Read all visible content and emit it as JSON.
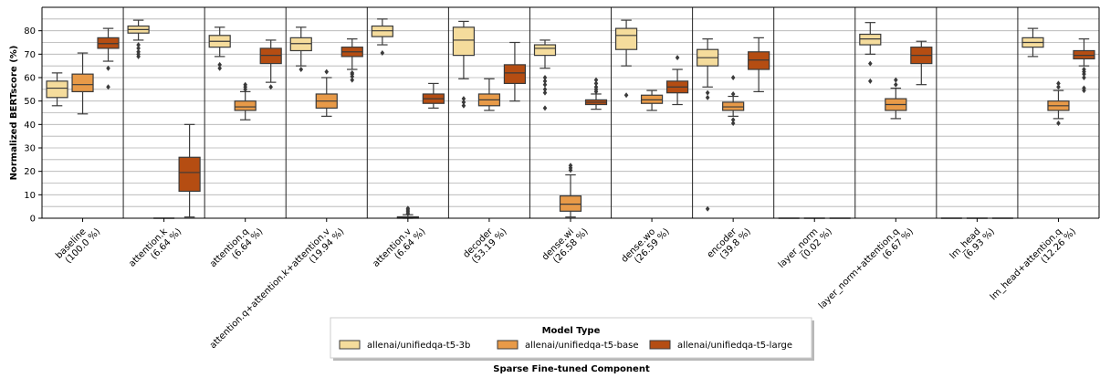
{
  "chart_data": {
    "type": "box",
    "xlabel": "Sparse Fine-tuned Component",
    "ylabel": "Normalized BERTscore (%)",
    "ylim": [
      0,
      90
    ],
    "yticks": [
      0,
      10,
      20,
      30,
      40,
      50,
      60,
      70,
      80
    ],
    "grid": "horizontal",
    "legend_title": "Model Type",
    "legend_position": "bottom-center",
    "categories": [
      {
        "label": "baseline",
        "pct": "(100.0 %)"
      },
      {
        "label": "attention.k",
        "pct": "(6.64 %)"
      },
      {
        "label": "attention.q",
        "pct": "(6.64 %)"
      },
      {
        "label": "attention.q+attention.k+attention.v",
        "pct": "(19.94 %)"
      },
      {
        "label": "attention.v",
        "pct": "(6.64 %)"
      },
      {
        "label": "decoder",
        "pct": "(53.19 %)"
      },
      {
        "label": "dense.wi",
        "pct": "(26.58 %)"
      },
      {
        "label": "dense.wo",
        "pct": "(26.59 %)"
      },
      {
        "label": "encoder",
        "pct": "(39.8 %)"
      },
      {
        "label": "layer_norm",
        "pct": "(0.02 %)"
      },
      {
        "label": "layer_norm+attention.q",
        "pct": "(6.67 %)"
      },
      {
        "label": "lm_head",
        "pct": "(6.93 %)"
      },
      {
        "label": "lm_head+attention.q",
        "pct": "(12.26 %)"
      }
    ],
    "series": [
      {
        "name": "allenai/unifiedqa-t5-3b",
        "color": "#f5dc9c",
        "boxes": [
          {
            "min": 48,
            "q1": 51.5,
            "median": 55.5,
            "q3": 58.5,
            "max": 62,
            "outliers": []
          },
          {
            "min": 76,
            "q1": 79,
            "median": 80.5,
            "q3": 82,
            "max": 84.5,
            "outliers": [
              69,
              70,
              71,
              72.5,
              74
            ]
          },
          {
            "min": 69,
            "q1": 73,
            "median": 75.5,
            "q3": 78,
            "max": 81.5,
            "outliers": [
              64,
              65.5
            ]
          },
          {
            "min": 65,
            "q1": 71.5,
            "median": 74.5,
            "q3": 77,
            "max": 81.5,
            "outliers": [
              63.5
            ]
          },
          {
            "min": 74,
            "q1": 77.5,
            "median": 80,
            "q3": 82,
            "max": 85,
            "outliers": [
              70.5
            ]
          },
          {
            "min": 59.5,
            "q1": 69.5,
            "median": 76,
            "q3": 81.5,
            "max": 84,
            "outliers": [
              48,
              49.5,
              51
            ]
          },
          {
            "min": 64,
            "q1": 69.5,
            "median": 72.5,
            "q3": 74,
            "max": 76,
            "outliers": [
              47,
              53.5,
              55,
              57,
              58.5,
              60
            ]
          },
          {
            "min": 65,
            "q1": 72,
            "median": 78,
            "q3": 81,
            "max": 84.5,
            "outliers": [
              52.5
            ]
          },
          {
            "min": 56,
            "q1": 65,
            "median": 68.5,
            "q3": 72,
            "max": 76.5,
            "outliers": [
              4,
              51.5,
              53.5
            ]
          },
          {
            "min": 0,
            "q1": 0,
            "median": 0,
            "q3": 0,
            "max": 0,
            "outliers": []
          },
          {
            "min": 70,
            "q1": 74,
            "median": 76.5,
            "q3": 78.5,
            "max": 83.5,
            "outliers": [
              58.5,
              66
            ]
          },
          {
            "min": 0,
            "q1": 0,
            "median": 0,
            "q3": 0,
            "max": 0,
            "outliers": []
          },
          {
            "min": 69,
            "q1": 73,
            "median": 75,
            "q3": 77,
            "max": 81,
            "outliers": []
          }
        ]
      },
      {
        "name": "allenai/unifiedqa-t5-base",
        "color": "#e89a48",
        "boxes": [
          {
            "min": 44.5,
            "q1": 54,
            "median": 57,
            "q3": 61.5,
            "max": 70.5,
            "outliers": []
          },
          {
            "min": 0,
            "q1": 0,
            "median": 0,
            "q3": 0,
            "max": 0,
            "outliers": []
          },
          {
            "min": 42,
            "q1": 46,
            "median": 47.5,
            "q3": 50,
            "max": 54,
            "outliers": [
              55,
              56,
              57
            ]
          },
          {
            "min": 43.5,
            "q1": 47,
            "median": 50,
            "q3": 53,
            "max": 60,
            "outliers": [
              62.5
            ]
          },
          {
            "min": 0,
            "q1": 0,
            "median": 0.3,
            "q3": 0.6,
            "max": 1.5,
            "outliers": [
              2,
              2.8,
              3.5,
              4.2
            ]
          },
          {
            "min": 46,
            "q1": 48,
            "median": 50.5,
            "q3": 53,
            "max": 59.5,
            "outliers": []
          },
          {
            "min": 0.5,
            "q1": 3,
            "median": 6,
            "q3": 9.5,
            "max": 18.5,
            "outliers": [
              20.5,
              21.5,
              22.5
            ]
          },
          {
            "min": 46,
            "q1": 49,
            "median": 50.5,
            "q3": 52.5,
            "max": 54.5,
            "outliers": []
          },
          {
            "min": 43.5,
            "q1": 46,
            "median": 47.5,
            "q3": 49.5,
            "max": 52,
            "outliers": [
              40.5,
              42,
              53,
              60
            ]
          },
          {
            "min": 0,
            "q1": 0,
            "median": 0,
            "q3": 0,
            "max": 0,
            "outliers": []
          },
          {
            "min": 42.5,
            "q1": 46,
            "median": 48.5,
            "q3": 51,
            "max": 55.5,
            "outliers": [
              57,
              59
            ]
          },
          {
            "min": 0,
            "q1": 0,
            "median": 0,
            "q3": 0,
            "max": 0,
            "outliers": []
          },
          {
            "min": 42.5,
            "q1": 46,
            "median": 48,
            "q3": 50,
            "max": 54.5,
            "outliers": [
              40.5,
              56,
              57.5
            ]
          }
        ]
      },
      {
        "name": "allenai/unifiedqa-t5-large",
        "color": "#b54d12",
        "boxes": [
          {
            "min": 67,
            "q1": 72.5,
            "median": 74.5,
            "q3": 77,
            "max": 81,
            "outliers": [
              56,
              64
            ]
          },
          {
            "min": 0.5,
            "q1": 11.5,
            "median": 19.5,
            "q3": 26,
            "max": 40,
            "outliers": []
          },
          {
            "min": 58,
            "q1": 66,
            "median": 69.5,
            "q3": 72.5,
            "max": 76,
            "outliers": [
              56
            ]
          },
          {
            "min": 63.5,
            "q1": 69,
            "median": 71,
            "q3": 73,
            "max": 76.5,
            "outliers": [
              59,
              60.5,
              61.5,
              62
            ]
          },
          {
            "min": 47,
            "q1": 49,
            "median": 51,
            "q3": 53,
            "max": 57.5,
            "outliers": []
          },
          {
            "min": 50,
            "q1": 57.5,
            "median": 62,
            "q3": 65.5,
            "max": 75,
            "outliers": []
          },
          {
            "min": 46.5,
            "q1": 48.5,
            "median": 49.5,
            "q3": 50.5,
            "max": 53,
            "outliers": [
              54,
              55,
              56,
              57.5,
              59
            ]
          },
          {
            "min": 48.5,
            "q1": 53.5,
            "median": 56,
            "q3": 58.5,
            "max": 63.5,
            "outliers": [
              68.5
            ]
          },
          {
            "min": 54,
            "q1": 63.5,
            "median": 67.5,
            "q3": 71,
            "max": 77,
            "outliers": []
          },
          {
            "min": 0,
            "q1": 0,
            "median": 0,
            "q3": 0,
            "max": 0,
            "outliers": []
          },
          {
            "min": 57,
            "q1": 66,
            "median": 69.5,
            "q3": 73,
            "max": 75.5,
            "outliers": []
          },
          {
            "min": 0,
            "q1": 0,
            "median": 0,
            "q3": 0,
            "max": 0,
            "outliers": []
          },
          {
            "min": 65,
            "q1": 68,
            "median": 69.5,
            "q3": 71.5,
            "max": 76.5,
            "outliers": [
              54.5,
              55.5,
              60,
              61.5,
              62.5,
              63.5
            ]
          }
        ]
      }
    ]
  }
}
